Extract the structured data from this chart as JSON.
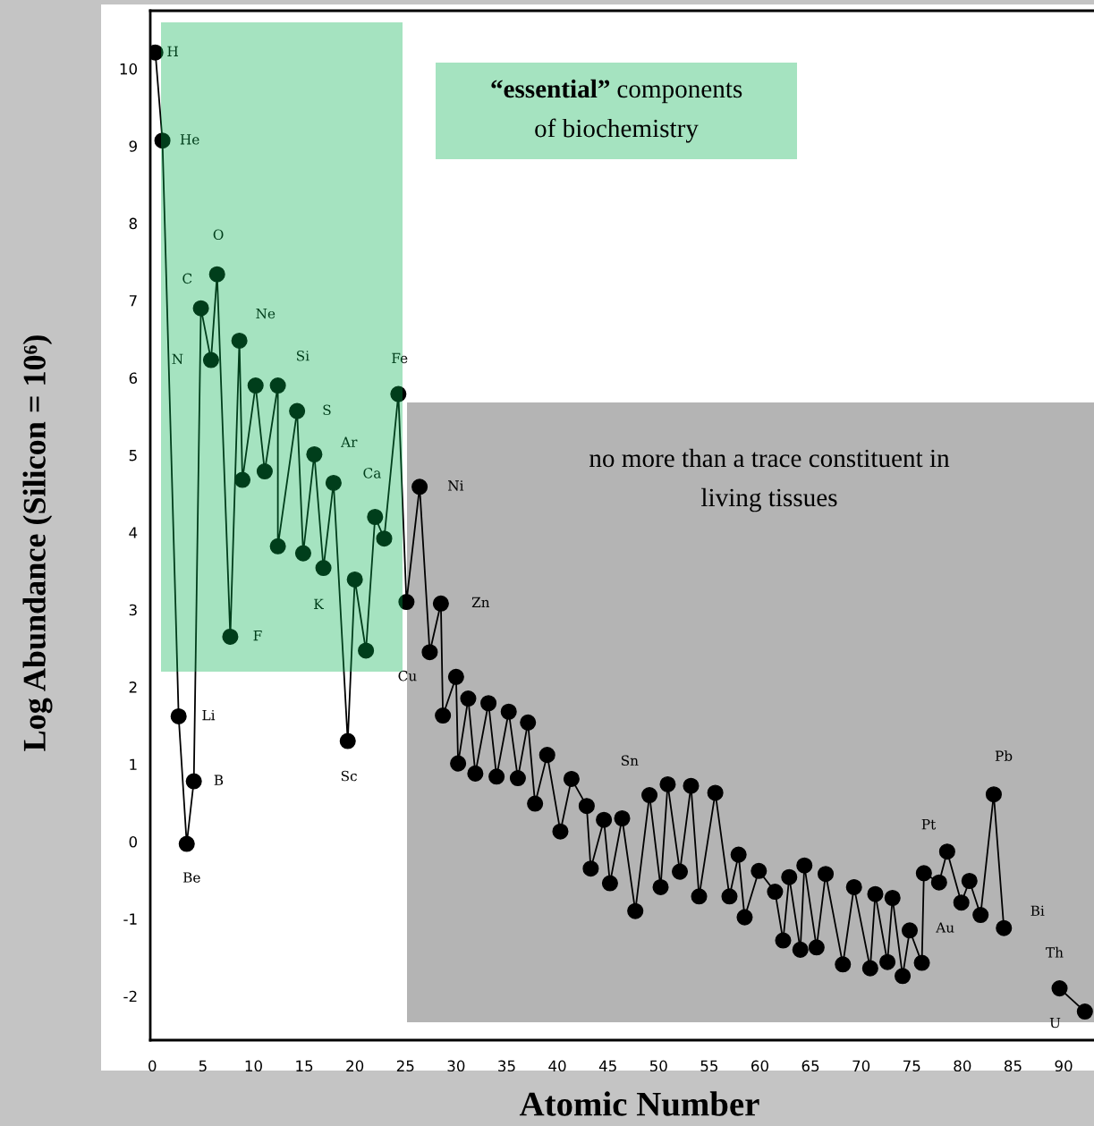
{
  "chart_data": {
    "type": "line",
    "xlabel": "Atomic Number",
    "ylabel": "Log Abundance (Silicon = 10⁶)",
    "series": [
      {
        "color": "#000000",
        "x": [
          0.3,
          1.0,
          2.6,
          3.4,
          4.1,
          4.8,
          5.8,
          6.4,
          7.7,
          8.6,
          8.9,
          10.2,
          11.1,
          12.4,
          12.4,
          14.3,
          14.9,
          16.0,
          16.9,
          17.9,
          19.3,
          20.0,
          21.1,
          22.0,
          22.9,
          24.3,
          25.1,
          26.4,
          27.4,
          28.5,
          28.7,
          30.0,
          30.2,
          31.2,
          31.9,
          33.2,
          34.0,
          35.2,
          36.1,
          37.1,
          37.8,
          39.0,
          40.3,
          41.4,
          42.9,
          43.3,
          44.6,
          45.2,
          46.4,
          47.7,
          49.1,
          50.2,
          50.9,
          52.1,
          53.2,
          54.0,
          55.6,
          57.0,
          57.9,
          58.5,
          59.9,
          61.5,
          62.3,
          62.9,
          64.0,
          64.4,
          65.6,
          66.5,
          68.2,
          69.3,
          70.9,
          71.4,
          72.6,
          73.1,
          74.1,
          74.8,
          76.0,
          76.2,
          77.7,
          78.5,
          79.9,
          80.7,
          81.8,
          83.1,
          84.1
        ],
        "values": [
          10.21,
          9.07,
          1.62,
          -0.03,
          0.78,
          6.9,
          6.23,
          7.34,
          2.65,
          6.48,
          4.68,
          5.9,
          4.79,
          5.9,
          3.82,
          5.57,
          3.73,
          5.01,
          3.54,
          4.64,
          1.3,
          3.39,
          2.47,
          4.2,
          3.92,
          5.79,
          3.1,
          4.59,
          2.45,
          3.08,
          1.63,
          2.13,
          1.01,
          1.85,
          0.88,
          1.79,
          0.84,
          1.68,
          0.82,
          1.54,
          0.49,
          1.12,
          0.13,
          0.81,
          0.46,
          -0.35,
          0.28,
          -0.54,
          0.3,
          -0.9,
          0.6,
          -0.59,
          0.74,
          -0.39,
          0.72,
          -0.71,
          0.63,
          -0.71,
          -0.17,
          -0.98,
          -0.38,
          -0.65,
          -1.28,
          -0.46,
          -1.4,
          -0.31,
          -1.37,
          -0.42,
          -1.59,
          -0.59,
          -1.64,
          -0.68,
          -1.56,
          -0.73,
          -1.74,
          -1.15,
          -1.57,
          -0.41,
          -0.53,
          -0.13,
          -0.79,
          -0.51,
          -0.95,
          0.61,
          -1.12
        ]
      },
      {
        "color": "#000000",
        "x": [
          89.6,
          92.1
        ],
        "values": [
          -1.9,
          -2.2
        ]
      }
    ],
    "xlim": [
      -0.2,
      93
    ],
    "ylim": [
      -2.57,
      10.75
    ],
    "xticks": [
      0,
      5,
      10,
      15,
      20,
      25,
      30,
      35,
      40,
      45,
      50,
      55,
      60,
      65,
      70,
      75,
      80,
      85,
      90
    ],
    "yticks": [
      -2,
      -1,
      0,
      1,
      2,
      3,
      4,
      5,
      6,
      7,
      8,
      9,
      10
    ],
    "marker": "circle",
    "line_style": "solid",
    "grid": false,
    "legend": false,
    "annotations": [
      "“essential” components\nof biochemistry",
      "no more than a trace constituent in\nliving tissues",
      {
        "text": "H",
        "x": 0.3,
        "y": 10.21
      },
      {
        "text": "He",
        "x": 1.0,
        "y": 9.07
      },
      {
        "text": "Li",
        "x": 2.6,
        "y": 1.62
      },
      {
        "text": "Be",
        "x": 3.4,
        "y": -0.03
      },
      {
        "text": "B",
        "x": 4.1,
        "y": 0.78
      },
      {
        "text": "C",
        "x": 4.8,
        "y": 6.9
      },
      {
        "text": "N",
        "x": 5.8,
        "y": 6.23
      },
      {
        "text": "O",
        "x": 6.4,
        "y": 7.34
      },
      {
        "text": "F",
        "x": 7.7,
        "y": 2.65
      },
      {
        "text": "Ne",
        "x": 8.6,
        "y": 6.48
      },
      {
        "text": "Si",
        "x": 12.4,
        "y": 5.9
      },
      {
        "text": "S",
        "x": 14.3,
        "y": 5.57
      },
      {
        "text": "Ar",
        "x": 16.0,
        "y": 5.01
      },
      {
        "text": "K",
        "x": 16.9,
        "y": 3.54
      },
      {
        "text": "Ca",
        "x": 17.9,
        "y": 4.64
      },
      {
        "text": "Sc",
        "x": 19.3,
        "y": 1.3
      },
      {
        "text": "Fe",
        "x": 24.3,
        "y": 5.79
      },
      {
        "text": "Ni",
        "x": 26.4,
        "y": 4.59
      },
      {
        "text": "Cu",
        "x": 27.4,
        "y": 2.45
      },
      {
        "text": "Zn",
        "x": 28.5,
        "y": 3.08
      },
      {
        "text": "Sn",
        "x": 49.1,
        "y": 0.6
      },
      {
        "text": "Pt",
        "x": 78.5,
        "y": -0.13
      },
      {
        "text": "Au",
        "x": 79.9,
        "y": -0.79
      },
      {
        "text": "Pb",
        "x": 83.1,
        "y": 0.61
      },
      {
        "text": "Bi",
        "x": 84.1,
        "y": -1.12
      },
      {
        "text": "Th",
        "x": 89.6,
        "y": -1.9
      },
      {
        "text": "U",
        "x": 92.1,
        "y": -2.2
      }
    ]
  }
}
